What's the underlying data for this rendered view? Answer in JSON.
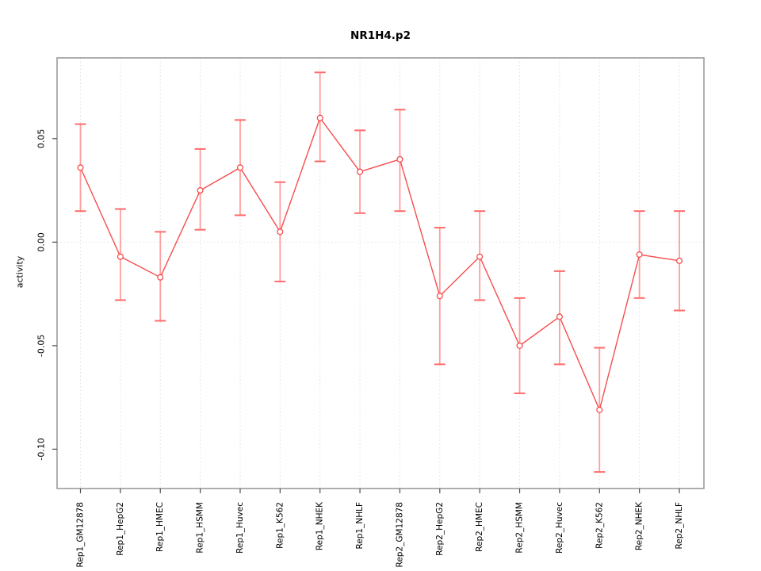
{
  "chart_data": {
    "type": "line",
    "title": "NR1H4.p2",
    "xlabel": "",
    "ylabel": "activity",
    "ylim": [
      -0.119,
      0.089
    ],
    "yticks": [
      -0.1,
      -0.05,
      0.0,
      0.05
    ],
    "ytick_labels": [
      "-0.10",
      "-0.05",
      "0.00",
      "0.05"
    ],
    "grid": "dotted vertical gridline at each category, dotted horizontal line at y=0",
    "legend_position": "none",
    "marker": "open-circle",
    "error_bars": true,
    "categories": [
      "Rep1_GM12878",
      "Rep1_HepG2",
      "Rep1_HMEC",
      "Rep1_HSMM",
      "Rep1_Huvec",
      "Rep1_K562",
      "Rep1_NHEK",
      "Rep1_NHLF",
      "Rep2_GM12878",
      "Rep2_HepG2",
      "Rep2_HMEC",
      "Rep2_HSMM",
      "Rep2_Huvec",
      "Rep2_K562",
      "Rep2_NHEK",
      "Rep2_NHLF"
    ],
    "series": [
      {
        "name": "activity",
        "values": [
          0.036,
          -0.007,
          -0.017,
          0.025,
          0.036,
          0.005,
          0.06,
          0.034,
          0.04,
          -0.026,
          -0.007,
          -0.05,
          -0.036,
          -0.081,
          -0.006,
          -0.009
        ],
        "lower": [
          0.015,
          -0.028,
          -0.038,
          0.006,
          0.013,
          -0.019,
          0.039,
          0.014,
          0.015,
          -0.059,
          -0.028,
          -0.073,
          -0.059,
          -0.111,
          -0.027,
          -0.033
        ],
        "upper": [
          0.057,
          0.016,
          0.005,
          0.045,
          0.059,
          0.029,
          0.082,
          0.054,
          0.064,
          0.007,
          0.015,
          -0.027,
          -0.014,
          -0.051,
          0.015,
          0.015
        ]
      }
    ],
    "colors": {
      "line": "#f64d4d",
      "marker_stroke": "#f64d4d",
      "marker_fill": "#ffffff",
      "error_bar_line": "#ff9d9d",
      "error_bar_cap": "#ff6b6b",
      "gridline": "#e0e0e0",
      "zero_line": "#e0e0e0",
      "box_border": "#9b9b9b",
      "tick": "#4d4d4d",
      "label_text": "#000000"
    }
  }
}
